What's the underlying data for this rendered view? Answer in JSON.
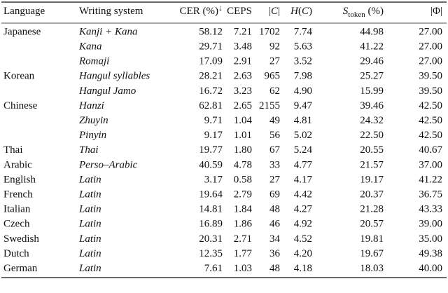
{
  "table": {
    "header": [
      [
        {
          "text": "Language",
          "style": "normal"
        }
      ],
      [
        {
          "text": "Writing system",
          "style": "normal"
        }
      ],
      [
        {
          "text": "CER (%)",
          "style": "normal"
        },
        {
          "text": "↓",
          "style": "sup"
        }
      ],
      [
        {
          "text": "CEPS",
          "style": "normal"
        }
      ],
      [
        {
          "text": "|",
          "style": "normal"
        },
        {
          "text": "C",
          "style": "italic"
        },
        {
          "text": "|",
          "style": "normal"
        }
      ],
      [
        {
          "text": "H",
          "style": "italic"
        },
        {
          "text": "(",
          "style": "normal"
        },
        {
          "text": "C",
          "style": "italic"
        },
        {
          "text": ")",
          "style": "normal"
        }
      ],
      [
        {
          "text": "S",
          "style": "italic"
        },
        {
          "text": "token",
          "style": "sub"
        },
        {
          "text": " (%)",
          "style": "normal"
        }
      ],
      [
        {
          "text": "|Φ|",
          "style": "normal"
        }
      ]
    ],
    "rows": [
      [
        "Japanese",
        "Kanji + Kana",
        "58.12",
        "7.21",
        "1702",
        "7.74",
        "44.98",
        "27.00"
      ],
      [
        null,
        "Kana",
        "29.71",
        "3.48",
        "92",
        "5.63",
        "41.22",
        "27.00"
      ],
      [
        null,
        "Romaji",
        "17.09",
        "2.91",
        "27",
        "3.52",
        "29.46",
        "27.00"
      ],
      [
        "Korean",
        "Hangul syllables",
        "28.21",
        "2.63",
        "965",
        "7.98",
        "25.27",
        "39.50"
      ],
      [
        null,
        "Hangul Jamo",
        "16.72",
        "3.23",
        "62",
        "4.90",
        "15.99",
        "39.50"
      ],
      [
        "Chinese",
        "Hanzi",
        "62.81",
        "2.65",
        "2155",
        "9.47",
        "39.46",
        "42.50"
      ],
      [
        null,
        "Zhuyin",
        "9.71",
        "1.04",
        "49",
        "4.81",
        "24.32",
        "42.50"
      ],
      [
        null,
        "Pinyin",
        "9.17",
        "1.01",
        "56",
        "5.02",
        "22.50",
        "42.50"
      ],
      [
        "Thai",
        "Thai",
        "19.77",
        "1.80",
        "67",
        "5.24",
        "20.55",
        "40.67"
      ],
      [
        "Arabic",
        "Perso–Arabic",
        "40.59",
        "4.78",
        "33",
        "4.77",
        "21.57",
        "37.00"
      ],
      [
        "English",
        "Latin",
        "3.17",
        "0.58",
        "27",
        "4.17",
        "19.17",
        "41.22"
      ],
      [
        "French",
        "Latin",
        "19.64",
        "2.79",
        "69",
        "4.42",
        "20.37",
        "36.75"
      ],
      [
        "Italian",
        "Latin",
        "14.81",
        "1.84",
        "48",
        "4.27",
        "21.28",
        "43.33"
      ],
      [
        "Czech",
        "Latin",
        "16.89",
        "1.86",
        "46",
        "4.92",
        "20.57",
        "39.00"
      ],
      [
        "Swedish",
        "Latin",
        "20.31",
        "2.71",
        "34",
        "4.52",
        "19.81",
        "35.00"
      ],
      [
        "Dutch",
        "Latin",
        "12.35",
        "1.77",
        "36",
        "4.20",
        "19.67",
        "49.38"
      ],
      [
        "German",
        "Latin",
        "7.61",
        "1.03",
        "48",
        "4.18",
        "18.03",
        "40.00"
      ]
    ]
  }
}
